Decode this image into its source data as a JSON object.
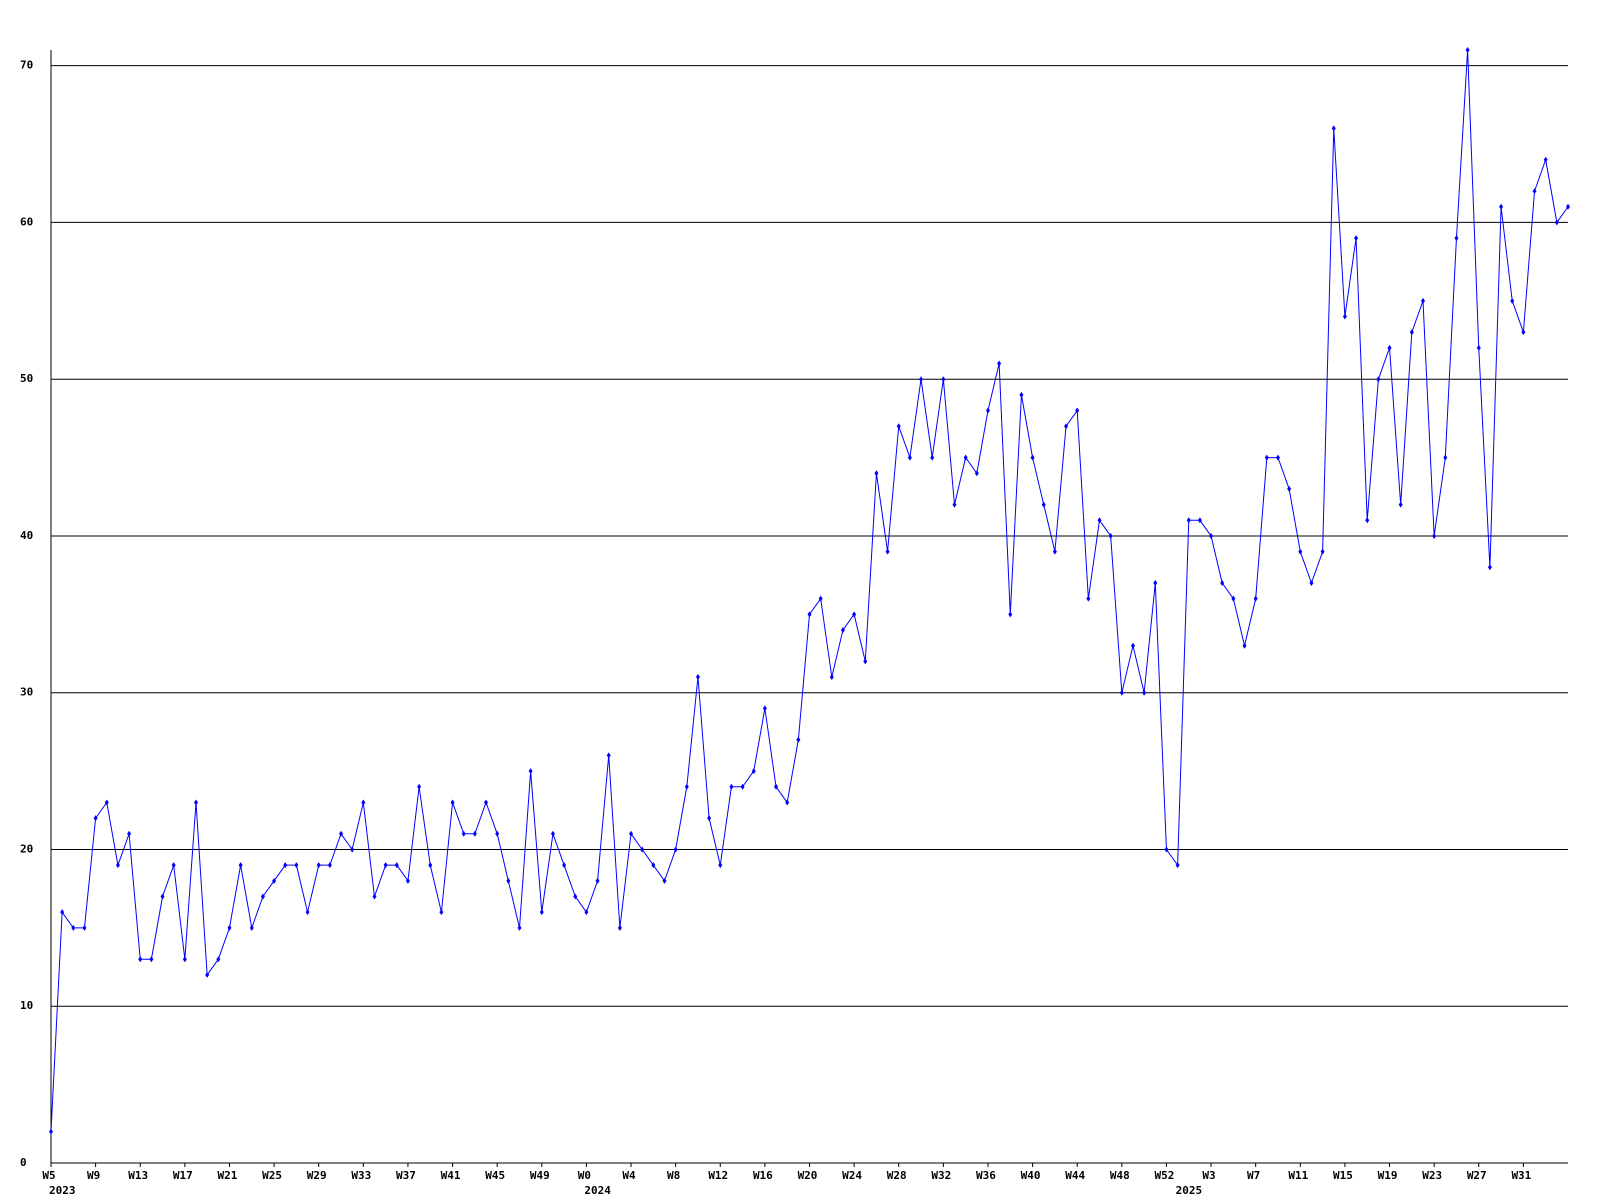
{
  "chart_data": {
    "type": "line",
    "color": "#0000ff",
    "grid": true,
    "ylim": [
      0,
      71
    ],
    "yticks": [
      0,
      10,
      20,
      30,
      40,
      50,
      60,
      70
    ],
    "categories": [
      "W5",
      null,
      null,
      null,
      "W9",
      null,
      null,
      null,
      "W13",
      null,
      null,
      null,
      "W17",
      null,
      null,
      null,
      "W21",
      null,
      null,
      null,
      "W25",
      null,
      null,
      null,
      "W29",
      null,
      null,
      null,
      "W33",
      null,
      null,
      null,
      "W37",
      null,
      null,
      null,
      "W41",
      null,
      null,
      null,
      "W45",
      null,
      null,
      null,
      "W49",
      null,
      null,
      null,
      "W0",
      null,
      null,
      null,
      "W4",
      null,
      null,
      null,
      "W8",
      null,
      null,
      null,
      "W12",
      null,
      null,
      null,
      "W16",
      null,
      null,
      null,
      "W20",
      null,
      null,
      null,
      "W24",
      null,
      null,
      null,
      "W28",
      null,
      null,
      null,
      "W32",
      null,
      null,
      null,
      "W36",
      null,
      null,
      null,
      "W40",
      null,
      null,
      null,
      "W44",
      null,
      null,
      null,
      "W48",
      null,
      null,
      null,
      "W52",
      null,
      null,
      null,
      "W3",
      null,
      null,
      null,
      "W7",
      null,
      null,
      null,
      "W11",
      null,
      null,
      null,
      "W15",
      null,
      null,
      null,
      "W19",
      null,
      null,
      null,
      "W23",
      null,
      null,
      null,
      "W27",
      null,
      null,
      null,
      "W31",
      null,
      null,
      null,
      null
    ],
    "category_years": [
      "2023",
      null,
      null,
      null,
      null,
      null,
      null,
      null,
      null,
      null,
      null,
      null,
      null,
      null,
      null,
      null,
      null,
      null,
      null,
      null,
      null,
      null,
      null,
      null,
      null,
      null,
      null,
      null,
      null,
      null,
      null,
      null,
      null,
      null,
      null,
      null,
      null,
      null,
      null,
      null,
      null,
      null,
      null,
      null,
      null,
      null,
      null,
      null,
      "2024",
      null,
      null,
      null,
      null,
      null,
      null,
      null,
      null,
      null,
      null,
      null,
      null,
      null,
      null,
      null,
      null,
      null,
      null,
      null,
      null,
      null,
      null,
      null,
      null,
      null,
      null,
      null,
      null,
      null,
      null,
      null,
      null,
      null,
      null,
      null,
      null,
      null,
      null,
      null,
      null,
      null,
      null,
      null,
      null,
      null,
      null,
      null,
      null,
      null,
      null,
      null,
      null,
      "2025",
      null,
      null,
      null,
      null,
      null,
      null,
      null,
      null,
      null,
      null,
      null,
      null,
      null,
      null,
      null,
      null,
      null,
      null,
      null,
      null,
      null,
      null,
      null,
      null,
      null,
      null,
      null,
      null,
      null,
      null,
      null,
      null,
      null,
      null,
      null
    ],
    "values": [
      2,
      16,
      15,
      15,
      22,
      23,
      19,
      21,
      13,
      13,
      17,
      19,
      13,
      23,
      12,
      13,
      15,
      19,
      15,
      17,
      18,
      19,
      19,
      16,
      19,
      19,
      21,
      20,
      23,
      17,
      19,
      19,
      18,
      24,
      19,
      16,
      23,
      21,
      21,
      23,
      21,
      18,
      15,
      25,
      16,
      21,
      19,
      17,
      16,
      18,
      26,
      15,
      21,
      20,
      19,
      18,
      20,
      24,
      31,
      22,
      19,
      24,
      24,
      25,
      29,
      24,
      23,
      27,
      35,
      36,
      31,
      34,
      35,
      32,
      44,
      39,
      47,
      45,
      50,
      45,
      50,
      42,
      45,
      44,
      48,
      51,
      35,
      49,
      45,
      42,
      39,
      47,
      48,
      36,
      41,
      40,
      30,
      33,
      30,
      37,
      20,
      19,
      41,
      41,
      40,
      37,
      36,
      33,
      36,
      45,
      45,
      43,
      39,
      37,
      39,
      66,
      54,
      59,
      41,
      50,
      52,
      42,
      53,
      55,
      40,
      45,
      59,
      71,
      52,
      38,
      61,
      55,
      53,
      62,
      64,
      60,
      61
    ]
  }
}
